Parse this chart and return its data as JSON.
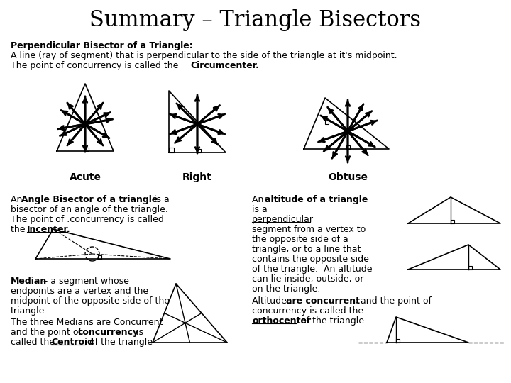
{
  "title": "Summary – Triangle Bisectors",
  "bg_color": "#ffffff",
  "title_fontsize": 22,
  "title_font": "serif",
  "section1_bold": "Perpendicular Bisector of a Triangle:",
  "section1_text1": "A line (ray of segment) that is perpendicular to the side of the triangle at it's midpoint.",
  "section1_text2": "The point of concurrency is called the ",
  "section1_bold2": "Circumcenter.",
  "acute_label": "Acute",
  "right_label": "Right",
  "obtuse_label": "Obtuse",
  "section2_bold": "Angle Bisector of a triangle",
  "section2_underline": "Incenter.",
  "section3_bold": "Median",
  "section3_bold2": "concurrency",
  "section3_underline": "Centroid",
  "section4_bold": "altitude of a triangle",
  "section4_bold2": "are concurrent",
  "section4_underline": "orthocenter"
}
